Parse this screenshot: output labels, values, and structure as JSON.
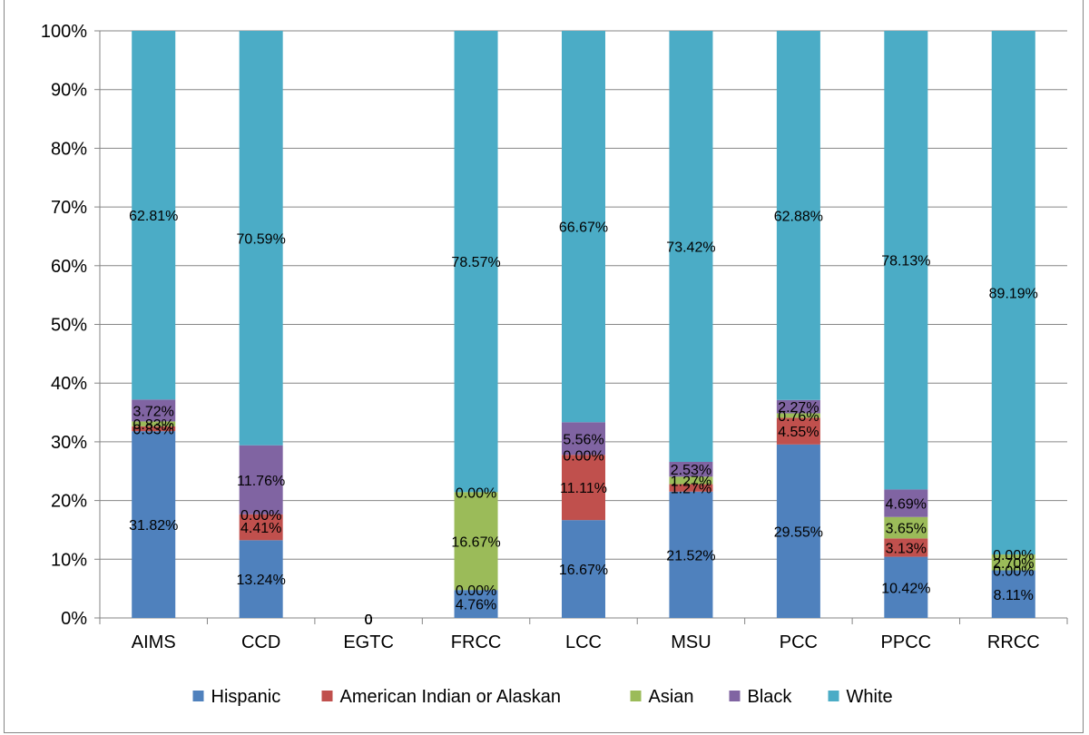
{
  "chart_data": {
    "type": "bar",
    "stacked": true,
    "percent_stacked": true,
    "categories": [
      "AIMS",
      "CCD",
      "EGTC",
      "FRCC",
      "LCC",
      "MSU",
      "PCC",
      "PPCC",
      "RRCC"
    ],
    "y_ticks": [
      "0%",
      "10%",
      "20%",
      "30%",
      "40%",
      "50%",
      "60%",
      "70%",
      "80%",
      "90%",
      "100%"
    ],
    "ylim": [
      0,
      100
    ],
    "grid": true,
    "legend_position": "bottom",
    "series": [
      {
        "name": "Hispanic",
        "color": "#4F81BD",
        "values": [
          31.82,
          13.24,
          0,
          4.76,
          16.67,
          21.52,
          29.55,
          10.42,
          8.11
        ],
        "labels": [
          "31.82%",
          "13.24%",
          "0",
          "4.76%",
          "16.67%",
          "21.52%",
          "29.55%",
          "10.42%",
          "8.11%"
        ]
      },
      {
        "name": "American Indian or Alaskan",
        "color": "#C0504D",
        "values": [
          0.83,
          4.41,
          0,
          0.0,
          11.11,
          1.27,
          4.55,
          3.13,
          0.0
        ],
        "labels": [
          "0.83%",
          "4.41%",
          "0",
          "0.00%",
          "11.11%",
          "1.27%",
          "4.55%",
          "3.13%",
          "0.00%"
        ]
      },
      {
        "name": "Asian",
        "color": "#9BBB59",
        "values": [
          0.83,
          0.0,
          0,
          16.67,
          0.0,
          1.27,
          0.76,
          3.65,
          2.7
        ],
        "labels": [
          "0.83%",
          "0.00%",
          "0",
          "16.67%",
          "0.00%",
          "1.27%",
          "0.76%",
          "3.65%",
          "2.70%"
        ]
      },
      {
        "name": "Black",
        "color": "#8064A2",
        "values": [
          3.72,
          11.76,
          0,
          0.0,
          5.56,
          2.53,
          2.27,
          4.69,
          0.0
        ],
        "labels": [
          "3.72%",
          "11.76%",
          "0",
          "0.00%",
          "5.56%",
          "2.53%",
          "2.27%",
          "4.69%",
          "0.00%"
        ]
      },
      {
        "name": "White",
        "color": "#4BACC6",
        "values": [
          62.81,
          70.59,
          0,
          78.57,
          66.67,
          73.42,
          62.88,
          78.13,
          89.19
        ],
        "labels": [
          "62.81%",
          "70.59%",
          "0",
          "78.57%",
          "66.67%",
          "73.42%",
          "62.88%",
          "78.13%",
          "89.19%"
        ]
      }
    ]
  }
}
